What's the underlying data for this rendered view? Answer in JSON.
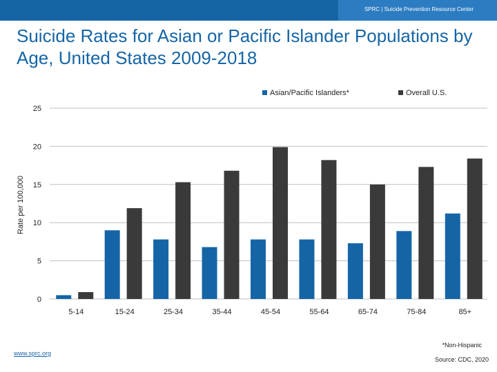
{
  "header": {
    "org_text": "SPRC  |  Suicide Prevention Resource Center"
  },
  "title": "Suicide Rates for Asian or Pacific Islander Populations by Age, United States 2009-2018",
  "footer": {
    "link": "www.sprc.org",
    "footnote": "*Non-Hispanic",
    "source": "Source: CDC, 2020"
  },
  "colors": {
    "header_blue": "#1565a6",
    "asian_series": "#1565a6",
    "overall_series": "#3a3a3a"
  },
  "chart_data": {
    "type": "bar",
    "title": "Suicide Rates for Asian or Pacific Islander Populations by Age, United States 2009-2018",
    "xlabel": "",
    "ylabel": "Rate per 100,000",
    "ylim": [
      0,
      25
    ],
    "yticks": [
      "0",
      "5",
      "10",
      "15",
      "20",
      "25"
    ],
    "grid": true,
    "legend_position": "top-right",
    "categories": [
      "5-14",
      "15-24",
      "25-34",
      "35-44",
      "45-54",
      "55-64",
      "65-74",
      "75-84",
      "85+"
    ],
    "series": [
      {
        "name": "Asian/Pacific Islanders*",
        "color": "#1565a6",
        "values": [
          0.5,
          9.0,
          7.8,
          6.8,
          7.8,
          7.8,
          7.3,
          8.9,
          11.2
        ]
      },
      {
        "name": "Overall U.S.",
        "color": "#3a3a3a",
        "values": [
          0.9,
          11.9,
          15.3,
          16.8,
          19.9,
          18.2,
          15.0,
          17.3,
          18.4
        ]
      }
    ]
  }
}
